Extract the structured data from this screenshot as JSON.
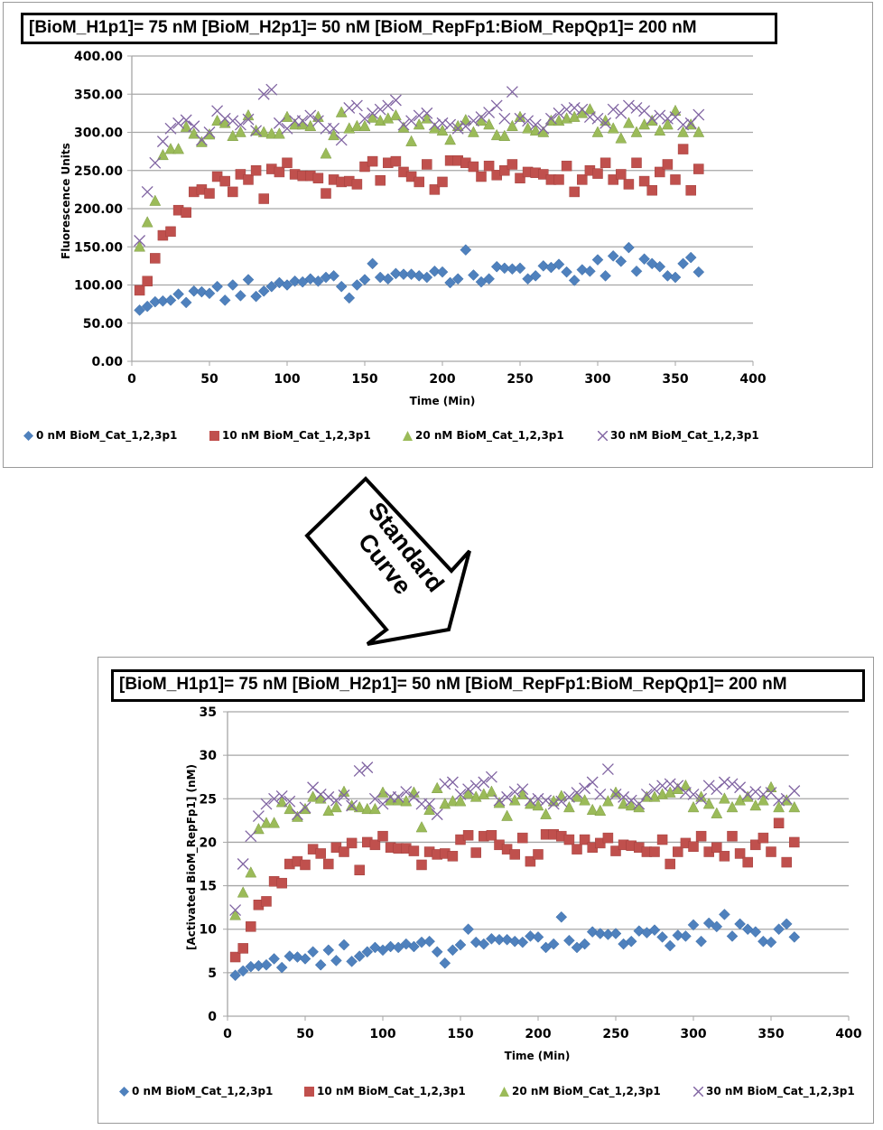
{
  "arrow": {
    "line1": "Standard",
    "line2": "Curve"
  },
  "colors": {
    "s0": "#4f81bd",
    "s1": "#c0504d",
    "s2": "#9bbb59",
    "s3": "#8064a2"
  },
  "chart_data": [
    {
      "type": "scatter",
      "title": "[BioM_H1p1]= 75 nM [BioM_H2p1]= 50 nM [BioM_RepFp1:BioM_RepQp1]= 200 nM",
      "xlabel": "Time (Min)",
      "ylabel": "Fluorescence Units",
      "xlim": [
        0,
        400
      ],
      "ylim": [
        0,
        400
      ],
      "xticks": [
        "0",
        "50",
        "100",
        "150",
        "200",
        "250",
        "300",
        "350",
        "400"
      ],
      "yticks": [
        "0.00",
        "50.00",
        "100.00",
        "150.00",
        "200.00",
        "250.00",
        "300.00",
        "350.00",
        "400.00"
      ],
      "grid": true,
      "legend": "bottom",
      "x": [
        5,
        10,
        15,
        20,
        25,
        30,
        35,
        40,
        45,
        50,
        55,
        60,
        65,
        70,
        75,
        80,
        85,
        90,
        95,
        100,
        105,
        110,
        115,
        120,
        125,
        130,
        135,
        140,
        145,
        150,
        155,
        160,
        165,
        170,
        175,
        180,
        185,
        190,
        195,
        200,
        205,
        210,
        215,
        220,
        225,
        230,
        235,
        240,
        245,
        250,
        255,
        260,
        265,
        270,
        275,
        280,
        285,
        290,
        295,
        300,
        305,
        310,
        315,
        320,
        325,
        330,
        335,
        340,
        345,
        350,
        355,
        360,
        365
      ],
      "series": [
        {
          "name": "0 nM BioM_Cat_1,2,3p1",
          "marker": "diamond",
          "values": [
            67,
            72,
            78,
            79,
            80,
            88,
            77,
            92,
            91,
            89,
            98,
            80,
            100,
            86,
            107,
            85,
            92,
            98,
            103,
            100,
            105,
            104,
            108,
            105,
            110,
            112,
            98,
            83,
            100,
            107,
            128,
            110,
            108,
            115,
            114,
            114,
            112,
            110,
            118,
            117,
            103,
            108,
            146,
            113,
            104,
            108,
            124,
            122,
            121,
            122,
            108,
            112,
            125,
            123,
            127,
            117,
            106,
            120,
            118,
            133,
            112,
            138,
            131,
            149,
            118,
            134,
            128,
            124,
            112,
            110,
            128,
            136,
            117
          ]
        },
        {
          "name": "10 nM BioM_Cat_1,2,3p1",
          "marker": "square",
          "values": [
            93,
            105,
            135,
            165,
            170,
            198,
            195,
            222,
            225,
            220,
            242,
            236,
            222,
            245,
            238,
            250,
            213,
            252,
            248,
            260,
            245,
            243,
            243,
            240,
            220,
            238,
            235,
            236,
            232,
            255,
            262,
            237,
            260,
            262,
            248,
            242,
            235,
            258,
            225,
            235,
            263,
            263,
            260,
            255,
            242,
            256,
            244,
            250,
            258,
            240,
            248,
            247,
            245,
            238,
            238,
            256,
            222,
            238,
            250,
            246,
            260,
            238,
            245,
            232,
            260,
            236,
            224,
            248,
            258,
            238,
            278,
            224,
            252
          ]
        },
        {
          "name": "20 nM BioM_Cat_1,2,3p1",
          "marker": "triangle",
          "values": [
            150,
            182,
            210,
            270,
            278,
            278,
            307,
            298,
            287,
            297,
            315,
            312,
            295,
            300,
            322,
            302,
            300,
            298,
            298,
            320,
            310,
            310,
            308,
            320,
            272,
            296,
            326,
            305,
            308,
            308,
            319,
            315,
            318,
            322,
            306,
            288,
            310,
            318,
            305,
            302,
            290,
            308,
            316,
            300,
            315,
            310,
            296,
            295,
            308,
            320,
            305,
            302,
            300,
            315,
            315,
            318,
            320,
            325,
            330,
            300,
            315,
            305,
            292,
            312,
            300,
            310,
            315,
            302,
            310,
            328,
            300,
            310,
            300
          ]
        },
        {
          "name": "30 nM BioM_Cat_1,2,3p1",
          "marker": "x",
          "values": [
            158,
            222,
            260,
            288,
            305,
            312,
            316,
            308,
            290,
            300,
            328,
            318,
            315,
            310,
            317,
            302,
            350,
            356,
            312,
            305,
            315,
            315,
            322,
            315,
            305,
            305,
            290,
            332,
            335,
            318,
            325,
            330,
            335,
            342,
            310,
            315,
            322,
            325,
            310,
            312,
            310,
            305,
            308,
            315,
            320,
            326,
            335,
            318,
            353,
            318,
            315,
            310,
            305,
            318,
            325,
            330,
            332,
            330,
            320,
            318,
            312,
            330,
            325,
            335,
            332,
            328,
            318,
            322,
            318,
            320,
            310,
            312,
            323
          ]
        }
      ]
    },
    {
      "type": "scatter",
      "title": "[BioM_H1p1]= 75 nM [BioM_H2p1]= 50 nM [BioM_RepFp1:BioM_RepQp1]= 200 nM",
      "xlabel": "Time (Min)",
      "ylabel": "[Activated BioM_RepFp1] (nM)",
      "xlim": [
        0,
        400
      ],
      "ylim": [
        0,
        35
      ],
      "xticks": [
        "0",
        "50",
        "100",
        "150",
        "200",
        "250",
        "300",
        "350",
        "400"
      ],
      "yticks": [
        "0",
        "5",
        "10",
        "15",
        "20",
        "25",
        "30",
        "35"
      ],
      "grid": true,
      "legend": "bottom",
      "x": [
        5,
        10,
        15,
        20,
        25,
        30,
        35,
        40,
        45,
        50,
        55,
        60,
        65,
        70,
        75,
        80,
        85,
        90,
        95,
        100,
        105,
        110,
        115,
        120,
        125,
        130,
        135,
        140,
        145,
        150,
        155,
        160,
        165,
        170,
        175,
        180,
        185,
        190,
        195,
        200,
        205,
        210,
        215,
        220,
        225,
        230,
        235,
        240,
        245,
        250,
        255,
        260,
        265,
        270,
        275,
        280,
        285,
        290,
        295,
        300,
        305,
        310,
        315,
        320,
        325,
        330,
        335,
        340,
        345,
        350,
        355,
        360,
        365
      ],
      "series": [
        {
          "name": "0 nM BioM_Cat_1,2,3p1",
          "marker": "diamond",
          "values": [
            4.7,
            5.2,
            5.7,
            5.8,
            5.9,
            6.6,
            5.6,
            6.9,
            6.8,
            6.6,
            7.4,
            5.9,
            7.6,
            6.4,
            8.2,
            6.3,
            6.9,
            7.4,
            7.9,
            7.6,
            8.0,
            7.9,
            8.3,
            8.0,
            8.5,
            8.6,
            7.4,
            6.1,
            7.6,
            8.2,
            10.0,
            8.5,
            8.3,
            8.9,
            8.8,
            8.8,
            8.6,
            8.5,
            9.2,
            9.1,
            7.9,
            8.3,
            11.4,
            8.7,
            7.9,
            8.3,
            9.7,
            9.5,
            9.4,
            9.5,
            8.3,
            8.6,
            9.8,
            9.6,
            9.9,
            9.1,
            8.1,
            9.3,
            9.2,
            10.5,
            8.6,
            10.7,
            10.3,
            11.7,
            9.2,
            10.6,
            10.0,
            9.7,
            8.6,
            8.5,
            10.0,
            10.6,
            9.1
          ]
        },
        {
          "name": "10 nM BioM_Cat_1,2,3p1",
          "marker": "square",
          "values": [
            6.8,
            7.8,
            10.3,
            12.8,
            13.2,
            15.5,
            15.3,
            17.5,
            17.8,
            17.4,
            19.2,
            18.7,
            17.5,
            19.4,
            18.9,
            19.9,
            16.8,
            20.0,
            19.7,
            20.7,
            19.4,
            19.3,
            19.3,
            19.0,
            17.4,
            18.9,
            18.6,
            18.7,
            18.4,
            20.3,
            20.8,
            18.8,
            20.7,
            20.8,
            19.7,
            19.2,
            18.6,
            20.5,
            17.8,
            18.6,
            20.9,
            20.9,
            20.7,
            20.3,
            19.2,
            20.3,
            19.4,
            19.9,
            20.5,
            19.0,
            19.7,
            19.6,
            19.4,
            18.9,
            18.9,
            20.3,
            17.5,
            18.9,
            19.9,
            19.5,
            20.7,
            18.9,
            19.4,
            18.4,
            20.7,
            18.7,
            17.7,
            19.7,
            20.5,
            18.9,
            22.2,
            17.7,
            20.0
          ]
        },
        {
          "name": "20 nM BioM_Cat_1,2,3p1",
          "marker": "triangle",
          "values": [
            11.6,
            14.2,
            16.5,
            21.5,
            22.2,
            22.2,
            24.6,
            23.8,
            22.9,
            23.8,
            25.2,
            25.0,
            23.6,
            24.0,
            25.8,
            24.2,
            24.0,
            23.8,
            23.8,
            25.7,
            24.8,
            24.8,
            24.7,
            25.7,
            21.7,
            23.7,
            26.2,
            24.4,
            24.7,
            24.7,
            25.6,
            25.2,
            25.5,
            25.8,
            24.5,
            23.0,
            24.8,
            25.5,
            24.4,
            24.2,
            23.2,
            24.7,
            25.3,
            24.0,
            25.2,
            24.8,
            23.7,
            23.6,
            24.7,
            25.7,
            24.4,
            24.2,
            24.0,
            25.2,
            25.2,
            25.5,
            25.7,
            26.1,
            26.5,
            24.0,
            25.2,
            24.4,
            23.3,
            25.0,
            24.0,
            24.8,
            25.2,
            24.2,
            24.8,
            26.3,
            24.0,
            24.8,
            24.0
          ]
        },
        {
          "name": "30 nM BioM_Cat_1,2,3p1",
          "marker": "x",
          "values": [
            12.2,
            17.5,
            20.7,
            23.0,
            24.4,
            25.0,
            25.3,
            24.7,
            23.2,
            24.0,
            26.3,
            25.5,
            25.2,
            24.8,
            25.4,
            24.2,
            28.2,
            28.6,
            25.0,
            24.4,
            25.2,
            25.2,
            25.8,
            25.2,
            24.4,
            24.4,
            23.2,
            26.7,
            26.9,
            25.5,
            26.1,
            26.5,
            26.9,
            27.5,
            24.8,
            25.2,
            25.8,
            26.1,
            24.8,
            25.0,
            24.8,
            24.4,
            24.7,
            25.2,
            25.7,
            26.2,
            26.9,
            25.5,
            28.4,
            25.5,
            25.2,
            24.8,
            24.4,
            25.5,
            26.1,
            26.5,
            26.7,
            26.5,
            25.7,
            25.5,
            25.0,
            26.5,
            26.1,
            26.9,
            26.7,
            26.3,
            25.5,
            25.8,
            25.5,
            25.7,
            24.8,
            25.0,
            25.9
          ]
        }
      ]
    }
  ]
}
